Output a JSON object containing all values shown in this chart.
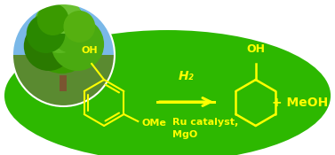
{
  "bg_color": "#2db800",
  "yellow": "#ffff00",
  "fig_bg": "#ffffff",
  "arrow_above": "H₂",
  "arrow_below1": "Ru catalyst,",
  "arrow_below2": "MgO",
  "product2": "+ MeOH",
  "oh_label": "OH",
  "ome_label": "OMe",
  "oh_label2": "OH",
  "figsize": [
    3.77,
    1.75
  ],
  "dpi": 100
}
